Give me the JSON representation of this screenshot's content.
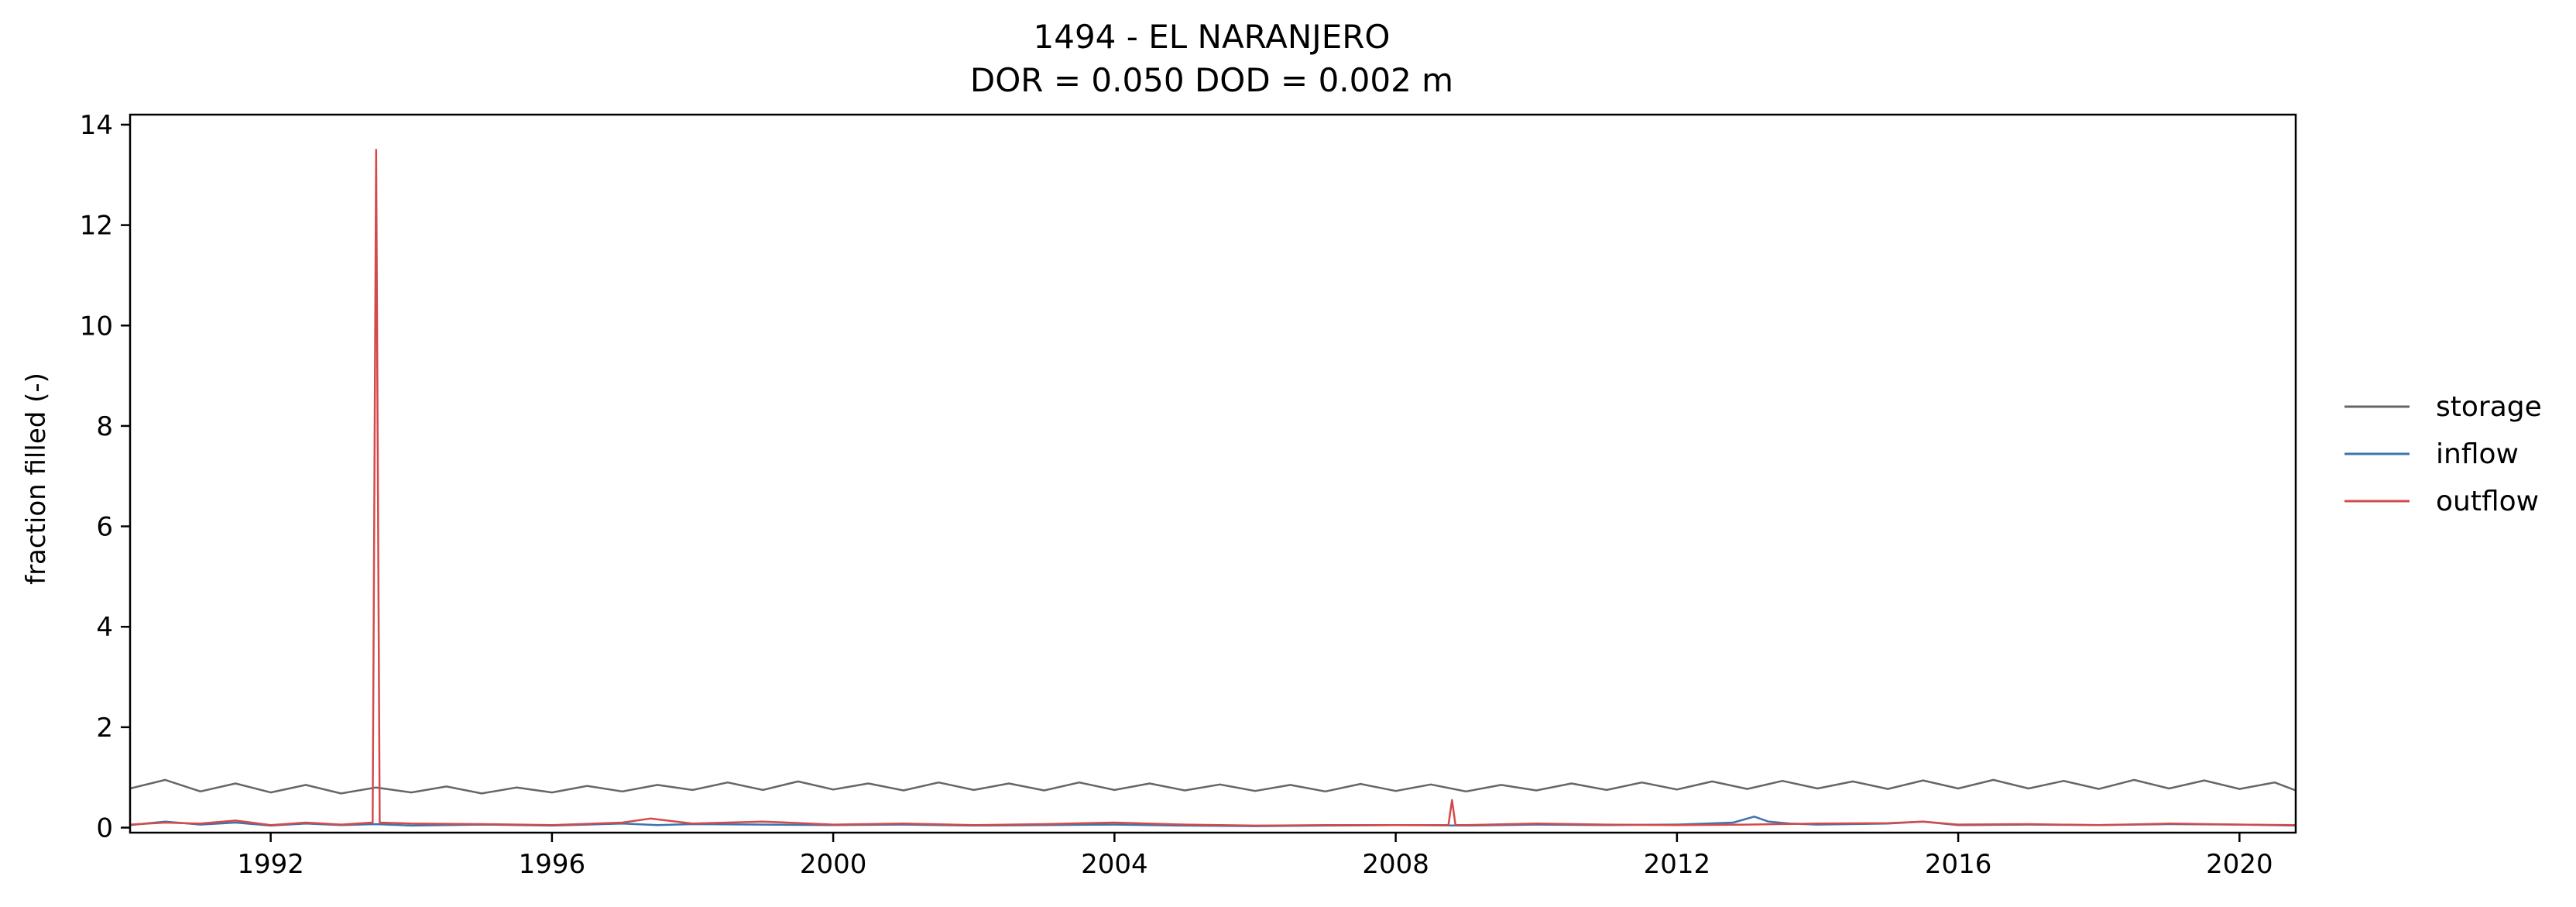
{
  "chart_data": {
    "type": "line",
    "title": "1494 - EL NARANJERO",
    "subtitle": "DOR = 0.050  DOD = 0.002 m",
    "xlabel": "",
    "ylabel": "fraction filled (-)",
    "xlim": [
      1990.0,
      2020.8
    ],
    "ylim": [
      -0.1,
      14.2
    ],
    "xticks": [
      1992,
      1996,
      2000,
      2004,
      2008,
      2012,
      2016,
      2020
    ],
    "xtick_labels": [
      "1992",
      "1996",
      "2000",
      "2004",
      "2008",
      "2012",
      "2016",
      "2020"
    ],
    "yticks": [
      0,
      2,
      4,
      6,
      8,
      10,
      12,
      14
    ],
    "ytick_labels": [
      "0",
      "2",
      "4",
      "6",
      "8",
      "10",
      "12",
      "14"
    ],
    "grid": false,
    "legend_position": "right, outside plot",
    "series": [
      {
        "name": "storage",
        "color": "#666666",
        "x": [
          1990.0,
          1990.5,
          1991.0,
          1991.5,
          1992.0,
          1992.5,
          1993.0,
          1993.5,
          1994.0,
          1994.5,
          1995.0,
          1995.5,
          1996.0,
          1996.5,
          1997.0,
          1997.5,
          1998.0,
          1998.5,
          1999.0,
          1999.5,
          2000.0,
          2000.5,
          2001.0,
          2001.5,
          2002.0,
          2002.5,
          2003.0,
          2003.5,
          2004.0,
          2004.5,
          2005.0,
          2005.5,
          2006.0,
          2006.5,
          2007.0,
          2007.5,
          2008.0,
          2008.5,
          2009.0,
          2009.5,
          2010.0,
          2010.5,
          2011.0,
          2011.5,
          2012.0,
          2012.5,
          2013.0,
          2013.5,
          2014.0,
          2014.5,
          2015.0,
          2015.5,
          2016.0,
          2016.5,
          2017.0,
          2017.5,
          2018.0,
          2018.5,
          2019.0,
          2019.5,
          2020.0,
          2020.5,
          2020.8
        ],
        "y": [
          0.78,
          0.95,
          0.72,
          0.88,
          0.7,
          0.85,
          0.68,
          0.8,
          0.7,
          0.82,
          0.68,
          0.8,
          0.7,
          0.83,
          0.72,
          0.85,
          0.75,
          0.9,
          0.75,
          0.92,
          0.76,
          0.88,
          0.74,
          0.9,
          0.75,
          0.88,
          0.74,
          0.9,
          0.75,
          0.88,
          0.74,
          0.86,
          0.73,
          0.85,
          0.72,
          0.87,
          0.73,
          0.86,
          0.72,
          0.85,
          0.74,
          0.88,
          0.75,
          0.9,
          0.76,
          0.92,
          0.77,
          0.93,
          0.78,
          0.92,
          0.77,
          0.94,
          0.78,
          0.95,
          0.78,
          0.93,
          0.77,
          0.95,
          0.78,
          0.94,
          0.77,
          0.9,
          0.74
        ]
      },
      {
        "name": "inflow",
        "color": "#3b75af",
        "x": [
          1990.0,
          1990.5,
          1991.0,
          1991.5,
          1992.0,
          1992.5,
          1993.0,
          1993.5,
          1994.0,
          1995.0,
          1996.0,
          1997.0,
          1997.5,
          1998.0,
          1999.0,
          2000.0,
          2001.0,
          2002.0,
          2003.0,
          2004.0,
          2005.0,
          2006.0,
          2007.0,
          2008.0,
          2009.0,
          2010.0,
          2011.0,
          2012.0,
          2012.8,
          2013.1,
          2013.3,
          2013.6,
          2014.0,
          2015.0,
          2015.5,
          2016.0,
          2017.0,
          2018.0,
          2019.0,
          2020.0,
          2020.8
        ],
        "y": [
          0.05,
          0.12,
          0.06,
          0.1,
          0.04,
          0.08,
          0.05,
          0.07,
          0.04,
          0.06,
          0.04,
          0.08,
          0.05,
          0.07,
          0.06,
          0.05,
          0.06,
          0.04,
          0.05,
          0.06,
          0.04,
          0.03,
          0.04,
          0.05,
          0.04,
          0.06,
          0.05,
          0.06,
          0.1,
          0.22,
          0.12,
          0.08,
          0.06,
          0.08,
          0.12,
          0.05,
          0.06,
          0.05,
          0.07,
          0.06,
          0.04
        ]
      },
      {
        "name": "outflow",
        "color": "#d44a4a",
        "x": [
          1990.0,
          1990.5,
          1991.0,
          1991.5,
          1992.0,
          1992.5,
          1993.0,
          1993.45,
          1993.5,
          1993.55,
          1994.0,
          1995.0,
          1996.0,
          1997.0,
          1997.4,
          1998.0,
          1999.0,
          2000.0,
          2001.0,
          2002.0,
          2003.0,
          2004.0,
          2005.0,
          2006.0,
          2007.0,
          2008.0,
          2008.75,
          2008.8,
          2008.85,
          2009.0,
          2010.0,
          2011.0,
          2012.0,
          2013.0,
          2014.0,
          2015.0,
          2015.5,
          2016.0,
          2017.0,
          2018.0,
          2019.0,
          2020.0,
          2020.8
        ],
        "y": [
          0.06,
          0.1,
          0.08,
          0.14,
          0.05,
          0.1,
          0.06,
          0.1,
          13.5,
          0.1,
          0.08,
          0.07,
          0.05,
          0.1,
          0.18,
          0.08,
          0.12,
          0.06,
          0.08,
          0.05,
          0.07,
          0.1,
          0.06,
          0.04,
          0.05,
          0.05,
          0.05,
          0.55,
          0.05,
          0.05,
          0.08,
          0.06,
          0.05,
          0.06,
          0.08,
          0.09,
          0.12,
          0.06,
          0.07,
          0.05,
          0.08,
          0.06,
          0.05
        ]
      }
    ]
  }
}
